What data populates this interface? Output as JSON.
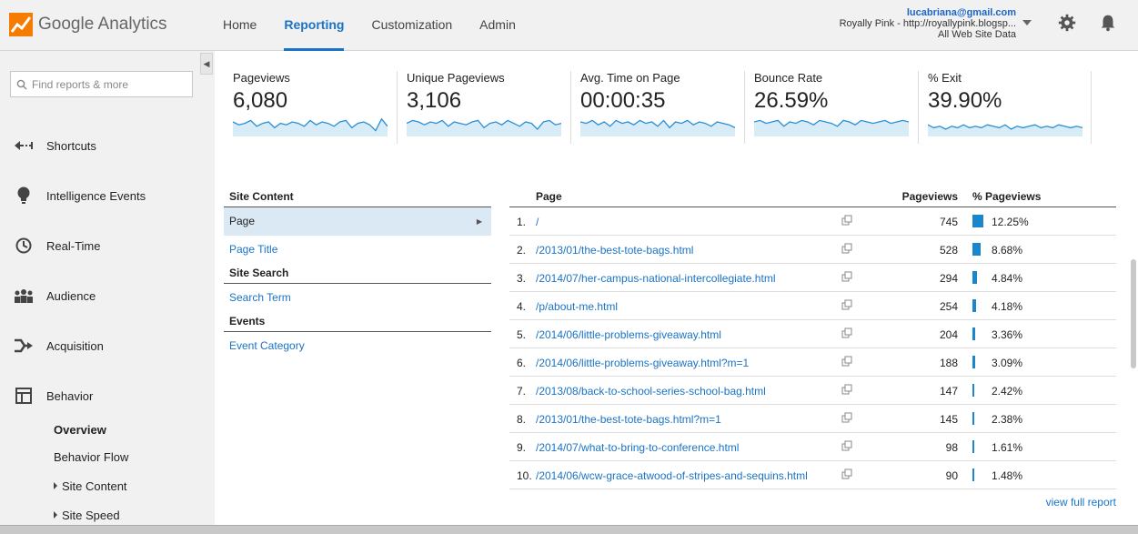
{
  "app": {
    "logo_word_google": "Google",
    "logo_word_analytics": "Analytics"
  },
  "nav": {
    "tabs": [
      {
        "label": "Home"
      },
      {
        "label": "Reporting"
      },
      {
        "label": "Customization"
      },
      {
        "label": "Admin"
      }
    ],
    "active": "Reporting"
  },
  "account": {
    "email": "lucabriana@gmail.com",
    "property": "Royally Pink - http://royallypink.blogsp...",
    "view": "All Web Site Data"
  },
  "search": {
    "placeholder": "Find reports & more"
  },
  "sidebar": {
    "items": [
      {
        "label": "Shortcuts",
        "icon": "shortcuts-arrow-icon"
      },
      {
        "label": "Intelligence Events",
        "icon": "lightbulb-icon"
      },
      {
        "label": "Real-Time",
        "icon": "clock-icon"
      },
      {
        "label": "Audience",
        "icon": "people-icon"
      },
      {
        "label": "Acquisition",
        "icon": "acquisition-arrows-icon"
      },
      {
        "label": "Behavior",
        "icon": "behavior-layout-icon"
      }
    ],
    "behavior_sub": [
      {
        "label": "Overview"
      },
      {
        "label": "Behavior Flow"
      },
      {
        "label": "Site Content"
      },
      {
        "label": "Site Speed"
      }
    ]
  },
  "metrics": [
    {
      "label": "Pageviews",
      "value": "6,080"
    },
    {
      "label": "Unique Pageviews",
      "value": "3,106"
    },
    {
      "label": "Avg. Time on Page",
      "value": "00:00:35"
    },
    {
      "label": "Bounce Rate",
      "value": "26.59%"
    },
    {
      "label": "% Exit",
      "value": "39.90%"
    }
  ],
  "site_panel": {
    "site_content_heading": "Site Content",
    "page_label": "Page",
    "page_title_label": "Page Title",
    "site_search_heading": "Site Search",
    "search_term_label": "Search Term",
    "events_heading": "Events",
    "event_category_label": "Event Category"
  },
  "table": {
    "headers": {
      "page": "Page",
      "pageviews": "Pageviews",
      "pct": "% Pageviews"
    },
    "rows": [
      {
        "rank": "1.",
        "page": "/",
        "pageviews": "745",
        "pct": "12.25%",
        "share": 12.25
      },
      {
        "rank": "2.",
        "page": "/2013/01/the-best-tote-bags.html",
        "pageviews": "528",
        "pct": "8.68%",
        "share": 8.68
      },
      {
        "rank": "3.",
        "page": "/2014/07/her-campus-national-intercollegiate.html",
        "pageviews": "294",
        "pct": "4.84%",
        "share": 4.84
      },
      {
        "rank": "4.",
        "page": "/p/about-me.html",
        "pageviews": "254",
        "pct": "4.18%",
        "share": 4.18
      },
      {
        "rank": "5.",
        "page": "/2014/06/little-problems-giveaway.html",
        "pageviews": "204",
        "pct": "3.36%",
        "share": 3.36
      },
      {
        "rank": "6.",
        "page": "/2014/06/little-problems-giveaway.html?m=1",
        "pageviews": "188",
        "pct": "3.09%",
        "share": 3.09
      },
      {
        "rank": "7.",
        "page": "/2013/08/back-to-school-series-school-bag.html",
        "pageviews": "147",
        "pct": "2.42%",
        "share": 2.42
      },
      {
        "rank": "8.",
        "page": "/2013/01/the-best-tote-bags.html?m=1",
        "pageviews": "145",
        "pct": "2.38%",
        "share": 2.38
      },
      {
        "rank": "9.",
        "page": "/2014/07/what-to-bring-to-conference.html",
        "pageviews": "98",
        "pct": "1.61%",
        "share": 1.61
      },
      {
        "rank": "10.",
        "page": "/2014/06/wcw-grace-atwood-of-stripes-and-sequins.html",
        "pageviews": "90",
        "pct": "1.48%",
        "share": 1.48
      }
    ],
    "view_full_label": "view full report"
  },
  "colors": {
    "accent": "#1a73c6",
    "bar": "#1a86cc",
    "spark_line": "#2a8fd4",
    "spark_fill": "#d8ecf8"
  }
}
